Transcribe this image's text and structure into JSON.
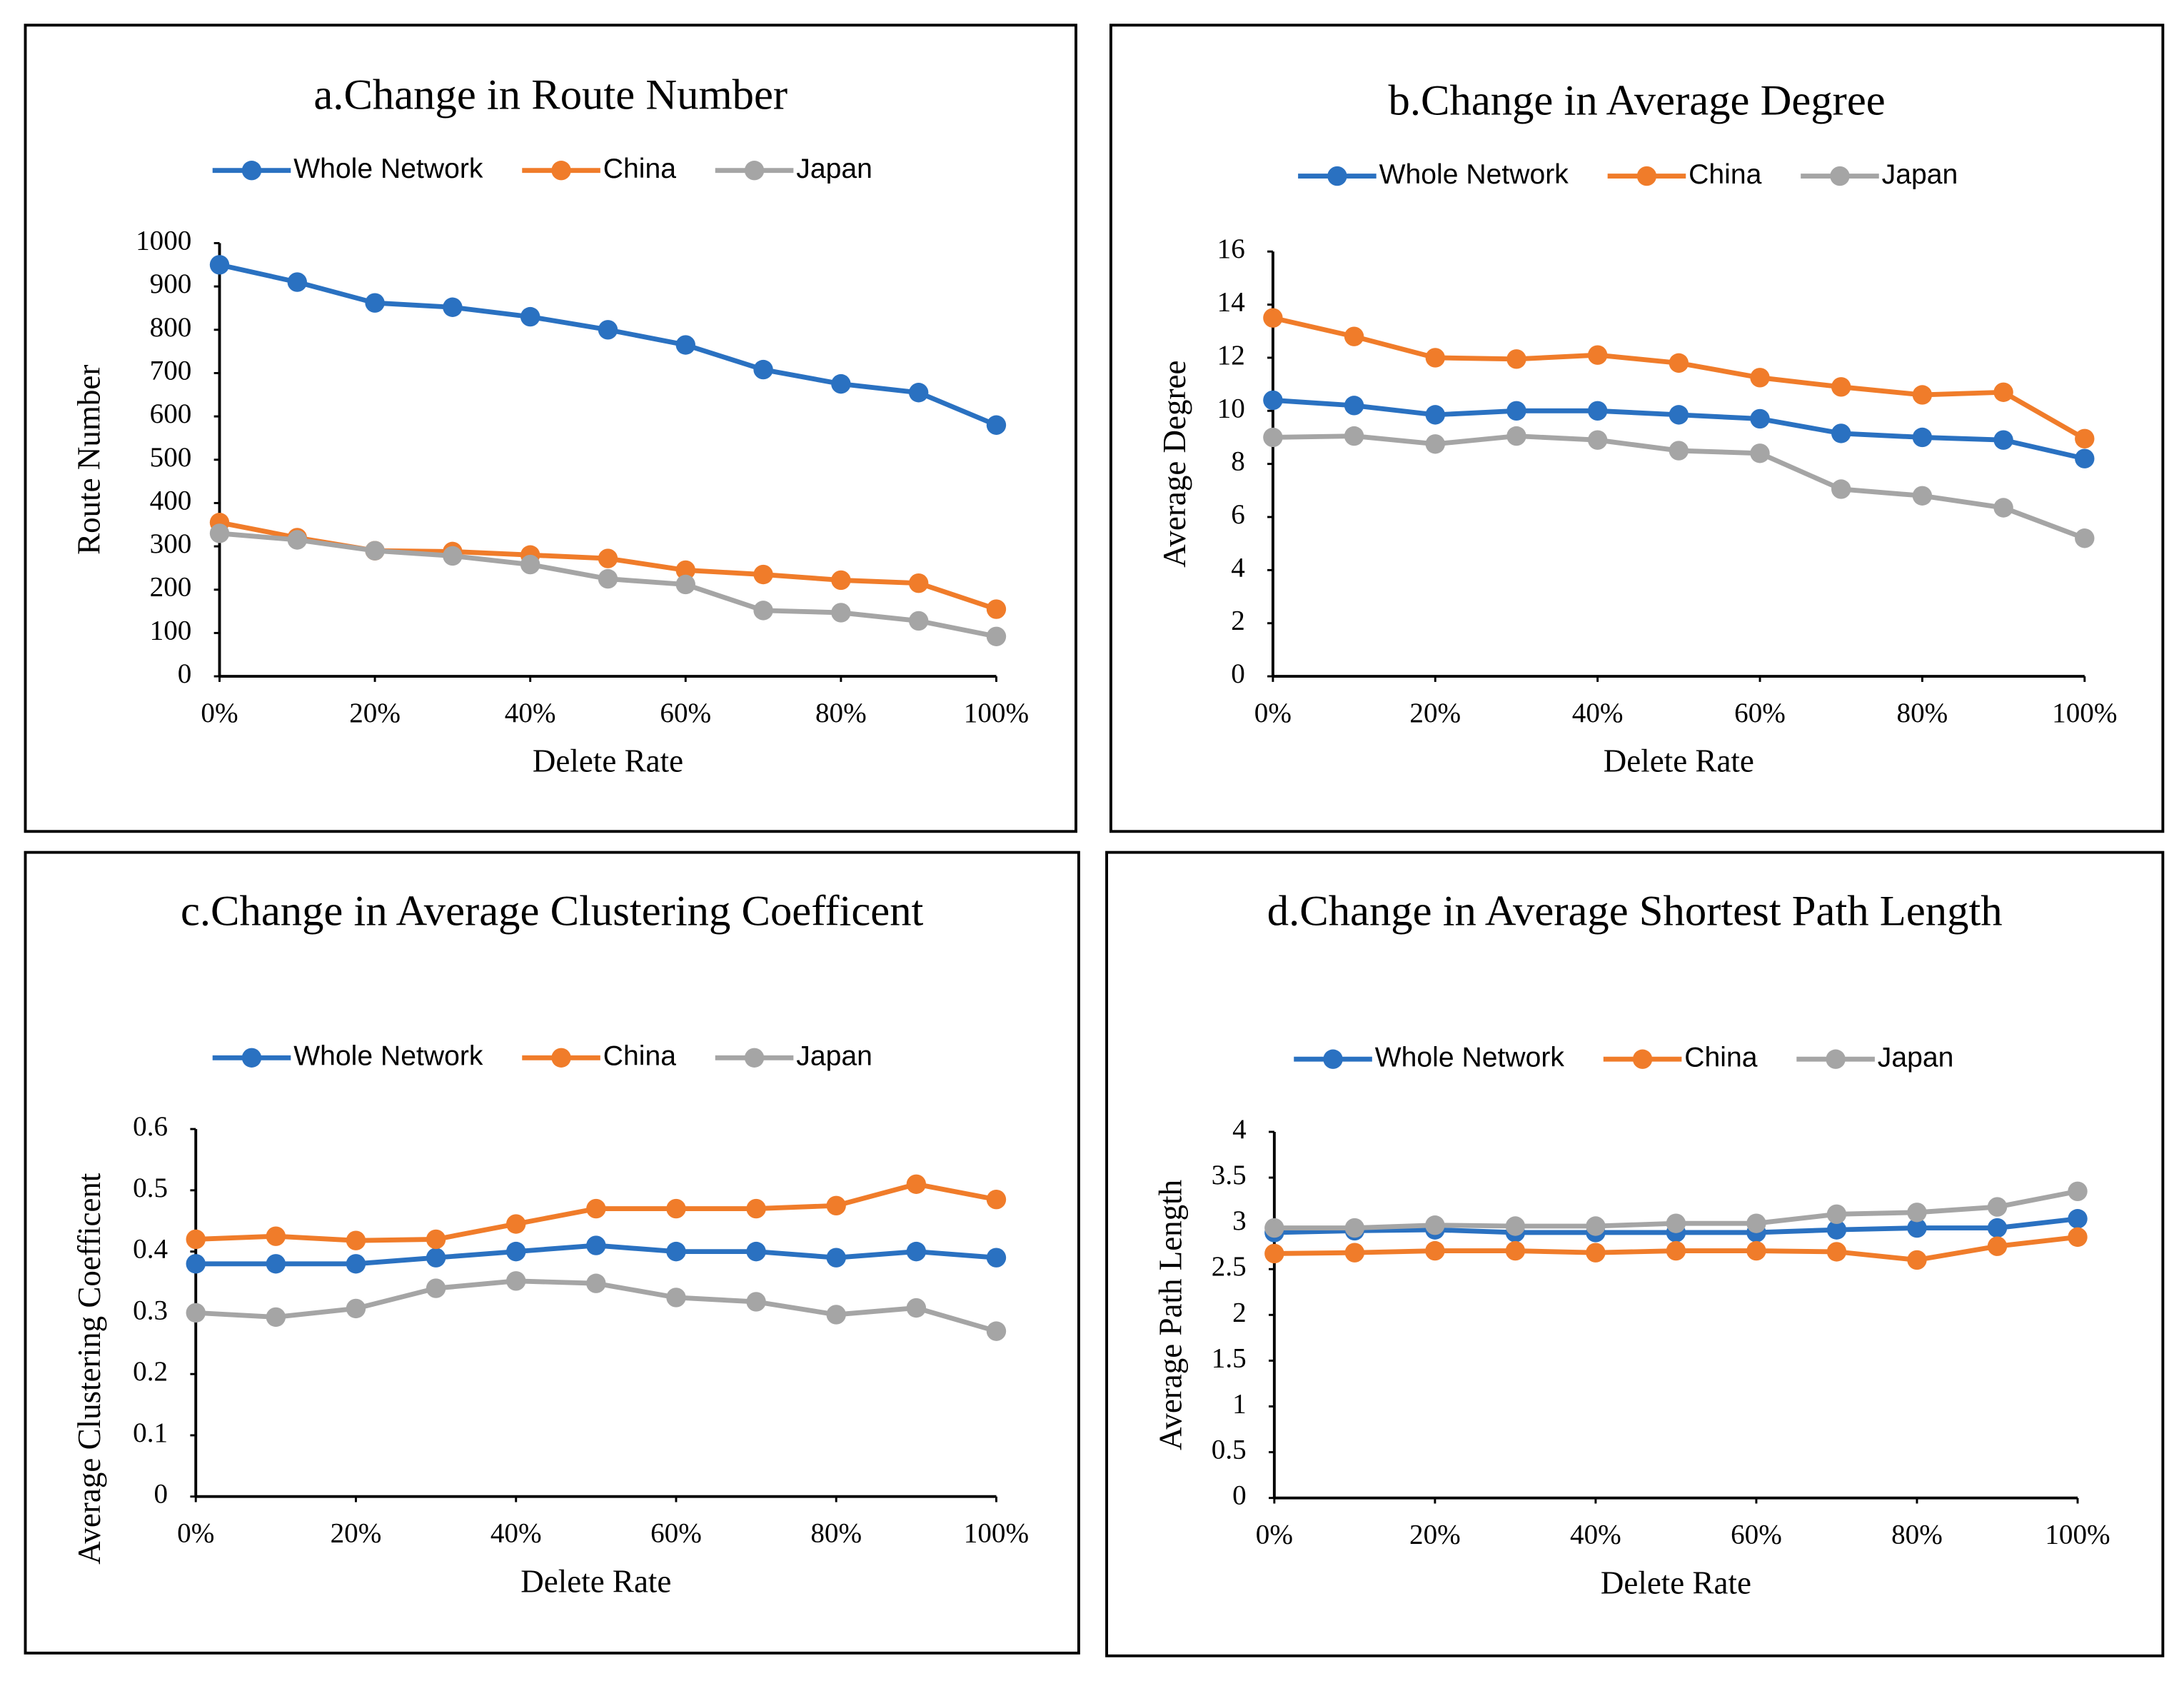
{
  "chart_data": [
    {
      "type": "line",
      "title": "a.Change in Route Number",
      "x": [
        0,
        10,
        20,
        30,
        40,
        50,
        60,
        70,
        80,
        90,
        100
      ],
      "xlim": [
        0,
        100
      ],
      "xticks": [
        {
          "value": 0,
          "label": "0%"
        },
        {
          "value": 20,
          "label": "20%"
        },
        {
          "value": 40,
          "label": "40%"
        },
        {
          "value": 60,
          "label": "60%"
        },
        {
          "value": 80,
          "label": "80%"
        },
        {
          "value": 100,
          "label": "100%"
        }
      ],
      "ylim": [
        0,
        1000
      ],
      "yticks": [
        0,
        100,
        200,
        300,
        400,
        500,
        600,
        700,
        800,
        900,
        1000
      ],
      "x_label": "Delete Rate",
      "y_label": "Route Number",
      "legend": "top",
      "series": [
        {
          "name": "Whole Network",
          "color": "#2a71c1",
          "values": [
            950,
            910,
            862,
            852,
            830,
            800,
            765,
            708,
            675,
            655,
            580
          ]
        },
        {
          "name": "China",
          "color": "#f07c2a",
          "values": [
            355,
            320,
            290,
            288,
            280,
            272,
            245,
            235,
            222,
            215,
            155
          ]
        },
        {
          "name": "Japan",
          "color": "#a5a5a5",
          "values": [
            330,
            315,
            290,
            278,
            258,
            225,
            212,
            152,
            147,
            128,
            92
          ]
        }
      ]
    },
    {
      "type": "line",
      "title": "b.Change in Average Degree",
      "x": [
        0,
        10,
        20,
        30,
        40,
        50,
        60,
        70,
        80,
        90,
        100
      ],
      "xlim": [
        0,
        100
      ],
      "xticks": [
        {
          "value": 0,
          "label": "0%"
        },
        {
          "value": 20,
          "label": "20%"
        },
        {
          "value": 40,
          "label": "40%"
        },
        {
          "value": 60,
          "label": "60%"
        },
        {
          "value": 80,
          "label": "80%"
        },
        {
          "value": 100,
          "label": "100%"
        }
      ],
      "ylim": [
        0,
        16
      ],
      "yticks": [
        0,
        2,
        4,
        6,
        8,
        10,
        12,
        14,
        16
      ],
      "x_label": "Delete Rate",
      "y_label": "Average Degree",
      "legend": "top",
      "series": [
        {
          "name": "Whole Network",
          "color": "#2a71c1",
          "values": [
            10.4,
            10.2,
            9.85,
            10.0,
            10.0,
            9.85,
            9.7,
            9.15,
            9.0,
            8.9,
            8.2
          ]
        },
        {
          "name": "China",
          "color": "#f07c2a",
          "values": [
            13.5,
            12.8,
            12.0,
            11.95,
            12.1,
            11.8,
            11.25,
            10.9,
            10.6,
            10.7,
            8.95
          ]
        },
        {
          "name": "Japan",
          "color": "#a5a5a5",
          "values": [
            9.0,
            9.05,
            8.75,
            9.05,
            8.9,
            8.5,
            8.4,
            7.05,
            6.8,
            6.35,
            5.2
          ]
        }
      ]
    },
    {
      "type": "line",
      "title": "c.Change in Average Clustering Coefficent",
      "x": [
        0,
        10,
        20,
        30,
        40,
        50,
        60,
        70,
        80,
        90,
        100
      ],
      "xlim": [
        0,
        100
      ],
      "xticks": [
        {
          "value": 0,
          "label": "0%"
        },
        {
          "value": 20,
          "label": "20%"
        },
        {
          "value": 40,
          "label": "40%"
        },
        {
          "value": 60,
          "label": "60%"
        },
        {
          "value": 80,
          "label": "80%"
        },
        {
          "value": 100,
          "label": "100%"
        }
      ],
      "ylim": [
        0,
        0.6
      ],
      "yticks": [
        0,
        0.1,
        0.2,
        0.3,
        0.4,
        0.5,
        0.6
      ],
      "x_label": "Delete Rate",
      "y_label": "Average Clustering Coefficent",
      "legend": "top",
      "series": [
        {
          "name": "Whole Network",
          "color": "#2a71c1",
          "values": [
            0.38,
            0.38,
            0.38,
            0.39,
            0.4,
            0.41,
            0.4,
            0.4,
            0.39,
            0.4,
            0.39
          ]
        },
        {
          "name": "China",
          "color": "#f07c2a",
          "values": [
            0.42,
            0.425,
            0.418,
            0.42,
            0.445,
            0.47,
            0.47,
            0.47,
            0.475,
            0.51,
            0.485
          ]
        },
        {
          "name": "Japan",
          "color": "#a5a5a5",
          "values": [
            0.3,
            0.293,
            0.307,
            0.34,
            0.352,
            0.348,
            0.325,
            0.318,
            0.297,
            0.308,
            0.27
          ]
        }
      ]
    },
    {
      "type": "line",
      "title": "d.Change in Average Shortest Path Length",
      "x": [
        0,
        10,
        20,
        30,
        40,
        50,
        60,
        70,
        80,
        90,
        100
      ],
      "xlim": [
        0,
        100
      ],
      "xticks": [
        {
          "value": 0,
          "label": "0%"
        },
        {
          "value": 20,
          "label": "20%"
        },
        {
          "value": 40,
          "label": "40%"
        },
        {
          "value": 60,
          "label": "60%"
        },
        {
          "value": 80,
          "label": "80%"
        },
        {
          "value": 100,
          "label": "100%"
        }
      ],
      "ylim": [
        0,
        4
      ],
      "yticks": [
        0,
        0.5,
        1,
        1.5,
        2,
        2.5,
        3,
        3.5,
        4
      ],
      "x_label": "Delete Rate",
      "y_label": "Average Path Length",
      "legend": "top",
      "series": [
        {
          "name": "Whole Network",
          "color": "#2a71c1",
          "values": [
            2.9,
            2.92,
            2.93,
            2.9,
            2.9,
            2.9,
            2.9,
            2.93,
            2.95,
            2.95,
            3.05
          ]
        },
        {
          "name": "China",
          "color": "#f07c2a",
          "values": [
            2.67,
            2.68,
            2.7,
            2.7,
            2.68,
            2.7,
            2.7,
            2.69,
            2.6,
            2.75,
            2.85
          ]
        },
        {
          "name": "Japan",
          "color": "#a5a5a5",
          "values": [
            2.95,
            2.95,
            2.98,
            2.97,
            2.97,
            3.0,
            3.0,
            3.1,
            3.12,
            3.18,
            3.35
          ]
        }
      ]
    }
  ]
}
